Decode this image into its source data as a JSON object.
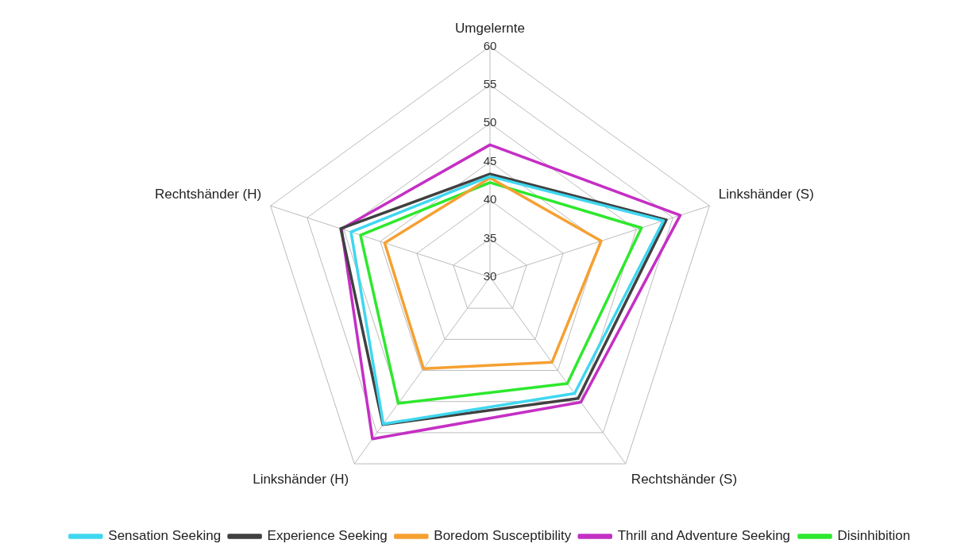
{
  "chart_data": {
    "type": "radar",
    "categories": [
      "Umgelernte",
      "Linkshänder (S)",
      "Rechtshänder (S)",
      "Linkshänder (H)",
      "Rechtshänder (H)"
    ],
    "series": [
      {
        "name": "Sensation Seeking",
        "color": "#3fd7f0",
        "values": [
          43.1,
          53.7,
          48.7,
          53.6,
          49.0
        ]
      },
      {
        "name": "Experience Seeking",
        "color": "#404040",
        "values": [
          43.4,
          54.1,
          49.5,
          53.7,
          50.4
        ]
      },
      {
        "name": "Boredom Susceptibility",
        "color": "#f5a031",
        "values": [
          42.9,
          45.2,
          43.7,
          44.7,
          44.4
        ]
      },
      {
        "name": "Thrill and Adventure Seeking",
        "color": "#c42fc4",
        "values": [
          47.2,
          56.0,
          50.1,
          56.0,
          50.3
        ]
      },
      {
        "name": "Disinhibition",
        "color": "#2de82d",
        "values": [
          42.3,
          50.7,
          47.1,
          50.3,
          47.7
        ]
      }
    ],
    "ylim": [
      30,
      60
    ],
    "yticks": [
      30,
      35,
      40,
      45,
      50,
      55,
      60
    ],
    "grid": true,
    "legend": "bottom",
    "marker": "none",
    "line_style": "solid"
  }
}
